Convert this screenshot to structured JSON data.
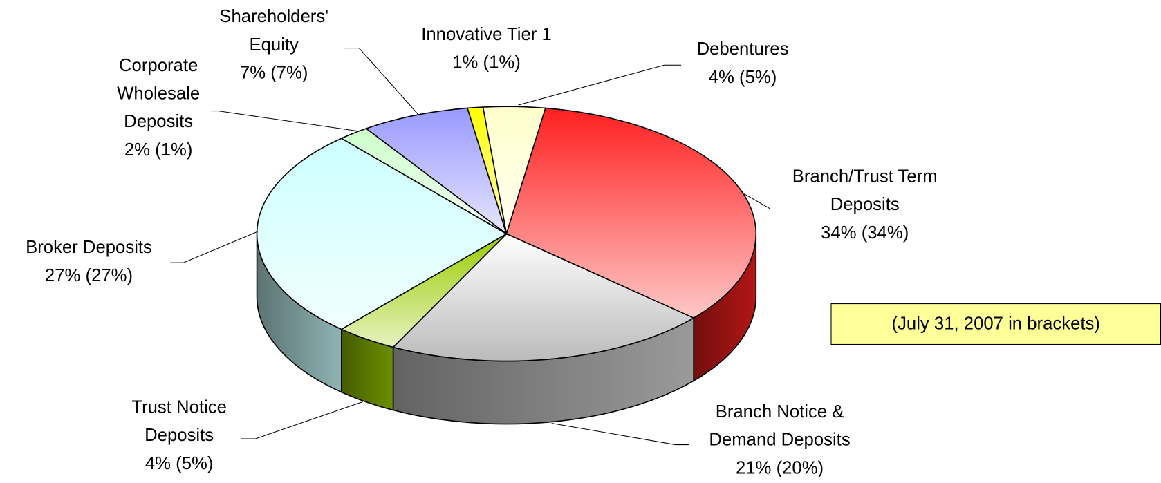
{
  "chart_data": {
    "type": "pie3d",
    "categories": [
      "Debentures",
      "Branch/Trust Term Deposits",
      "Branch Notice & Demand Deposits",
      "Trust Notice Deposits",
      "Broker Deposits",
      "Corporate Wholesale Deposits",
      "Shareholders' Equity",
      "Innovative Tier 1"
    ],
    "values": [
      4,
      34,
      21,
      4,
      27,
      2,
      7,
      1
    ],
    "value_labels": [
      "4%",
      "34%",
      "21%",
      "4%",
      "27%",
      "2%",
      "7%",
      "1%"
    ],
    "prior_values": [
      5,
      34,
      20,
      5,
      27,
      1,
      7,
      1
    ],
    "prior_value_labels": [
      "(5%)",
      "(34%)",
      "(20%)",
      "(5%)",
      "(27%)",
      "(1%)",
      "(7%)",
      "(1%)"
    ],
    "colors": [
      "#ffffcc",
      "#ff2020",
      "#dcdcdc",
      "#99cc00",
      "#ccffff",
      "#ccffcc",
      "#9999ff",
      "#ffff00"
    ],
    "annotation": "(July 31, 2007 in brackets)"
  }
}
